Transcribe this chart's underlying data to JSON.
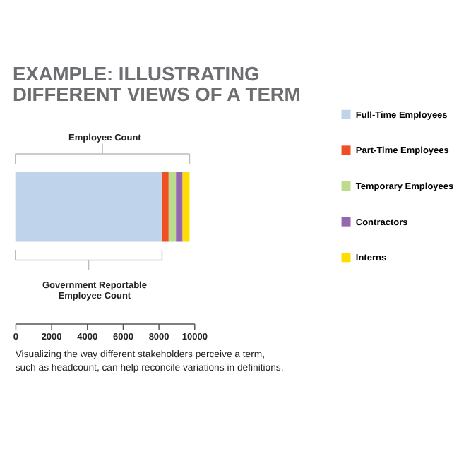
{
  "chart_data": {
    "type": "bar",
    "orientation": "horizontal",
    "stacked": true,
    "title": "EXAMPLE: ILLUSTRATING\nDIFFERENT VIEWS OF A TERM",
    "categories": [
      null
    ],
    "series": [
      {
        "name": "Full-Time Employees",
        "color": "#bfd3ea",
        "values": [
          8200
        ]
      },
      {
        "name": "Part-Time Employees",
        "color": "#f04e23",
        "values": [
          370
        ]
      },
      {
        "name": "Temporary Employees",
        "color": "#bcdc8c",
        "values": [
          410
        ]
      },
      {
        "name": "Contractors",
        "color": "#9467b0",
        "values": [
          370
        ]
      },
      {
        "name": "Interns",
        "color": "#ffdd00",
        "values": [
          390
        ]
      }
    ],
    "xlim": [
      0,
      10000
    ],
    "xticks": [
      0,
      2000,
      4000,
      6000,
      8000,
      10000
    ],
    "grid": false,
    "legend": "right",
    "annotations": [
      "Employee Count",
      "Government Reportable\nEmployee Count",
      "Visualizing the way different stakeholders perceive a term,\nsuch as headcount, can help reconcile variations in definitions."
    ]
  }
}
